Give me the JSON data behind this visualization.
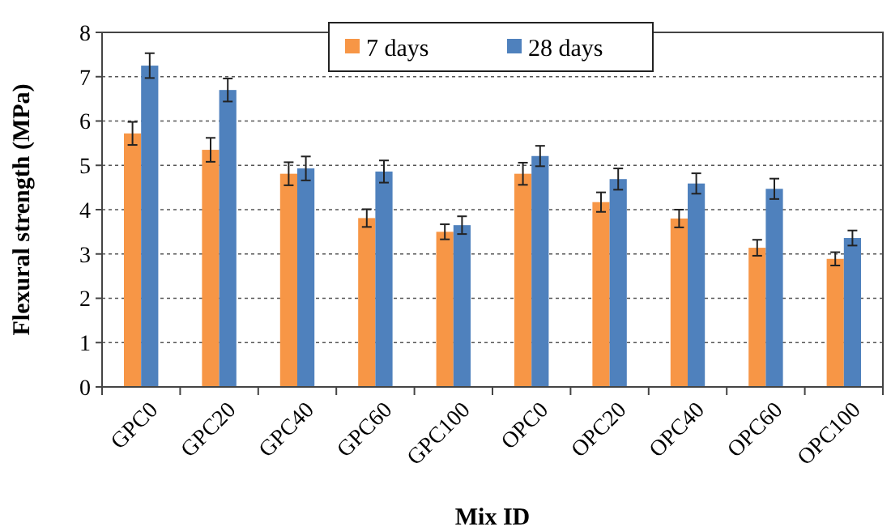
{
  "chart_data": {
    "type": "bar",
    "xlabel": "Mix ID",
    "ylabel": "Flexural strength (MPa)",
    "categories": [
      "GPC0",
      "GPC20",
      "GPC40",
      "GPC60",
      "GPC100",
      "OPC0",
      "OPC20",
      "OPC40",
      "OPC60",
      "OPC100"
    ],
    "series": [
      {
        "name": "7 days",
        "color": "#f79646",
        "values": [
          5.72,
          5.35,
          4.81,
          3.81,
          3.5,
          4.81,
          4.17,
          3.8,
          3.14,
          2.89
        ],
        "errors": [
          0.26,
          0.27,
          0.26,
          0.2,
          0.17,
          0.25,
          0.22,
          0.2,
          0.18,
          0.15
        ]
      },
      {
        "name": "28 days",
        "color": "#4f81bd",
        "values": [
          7.25,
          6.7,
          4.93,
          4.86,
          3.65,
          5.21,
          4.69,
          4.59,
          4.47,
          3.36
        ],
        "errors": [
          0.28,
          0.26,
          0.27,
          0.25,
          0.2,
          0.23,
          0.24,
          0.23,
          0.23,
          0.17
        ]
      }
    ],
    "ylim": [
      0,
      8
    ],
    "yticks": [
      0,
      1,
      2,
      3,
      4,
      5,
      6,
      7,
      8
    ],
    "grid": "y",
    "legend": "top"
  }
}
